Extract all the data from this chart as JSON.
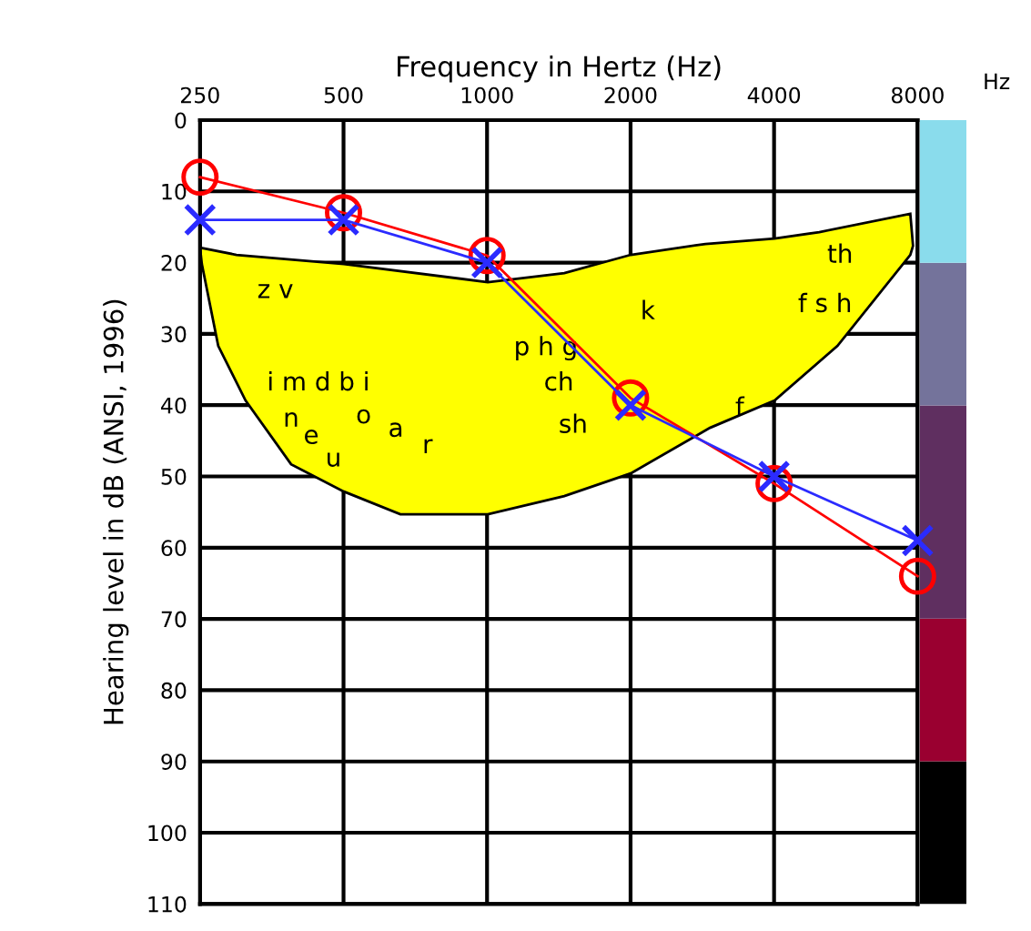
{
  "chart_data": {
    "type": "line",
    "xlabel": "Frequency in Hertz (Hz)",
    "ylabel": "Hearing level in dB (ANSI, 1996)",
    "log": "x",
    "xlim": [
      250,
      8000
    ],
    "xticks": [
      250,
      500,
      1000,
      2000,
      4000,
      8000
    ],
    "ylim": [
      110,
      0
    ],
    "yticks": [
      0,
      10,
      20,
      30,
      40,
      50,
      60,
      70,
      80,
      90,
      100,
      110
    ],
    "grid": true,
    "line_style": "solid",
    "series": [
      {
        "type": "line",
        "color": "#ff0000",
        "marker": "circle",
        "x": [
          250,
          500,
          1000,
          2000,
          4000,
          8000
        ],
        "values": [
          8,
          13,
          19,
          39,
          51,
          64
        ]
      },
      {
        "type": "line",
        "color": "#2b2bff",
        "marker": "cross",
        "x": [
          250,
          500,
          1000,
          2000,
          4000,
          8000
        ],
        "values": [
          14,
          14,
          20,
          40,
          50,
          59
        ]
      }
    ],
    "annotations": [
      "Hz",
      "z v",
      "th",
      "k",
      "f s h",
      "p h g",
      "ch",
      "sh",
      "i m d b i",
      "n",
      "e",
      "u",
      "o",
      "a",
      "r",
      "f"
    ]
  }
}
